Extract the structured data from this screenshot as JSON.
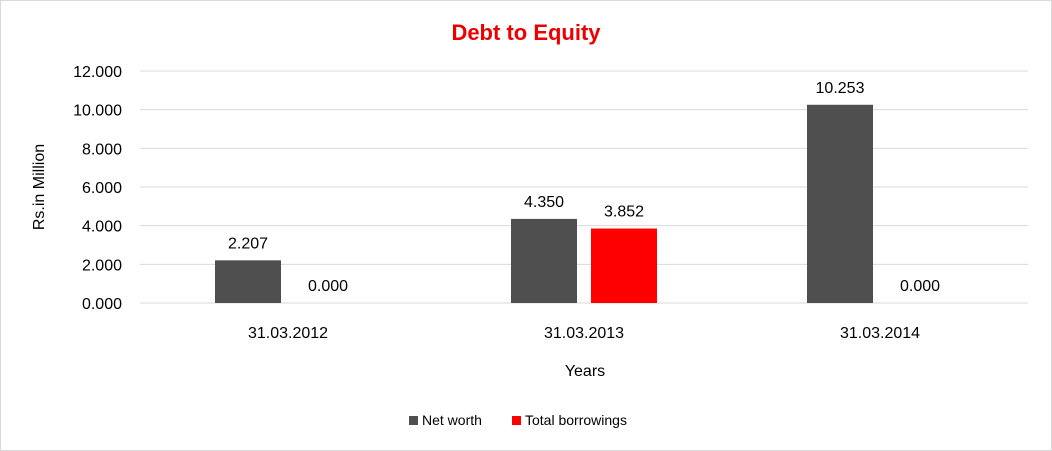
{
  "chart_data": {
    "type": "bar",
    "title": "Debt to Equity",
    "title_color": "#ee0000",
    "xlabel": "Years",
    "ylabel": "Rs.in Million",
    "categories": [
      "31.03.2012",
      "31.03.2013",
      "31.03.2014"
    ],
    "series": [
      {
        "name": "Net worth",
        "color": "#4f4f4f",
        "values": [
          2.207,
          4.35,
          10.253
        ],
        "labels": [
          "2.207",
          "4.350",
          "10.253"
        ]
      },
      {
        "name": "Total borrowings",
        "color": "#ff0000",
        "values": [
          0.0,
          3.852,
          0.0
        ],
        "labels": [
          "0.000",
          "3.852",
          "0.000"
        ]
      }
    ],
    "ylim": [
      0,
      12
    ],
    "yticks": [
      0,
      2,
      4,
      6,
      8,
      10,
      12
    ],
    "ytick_labels": [
      "0.000",
      "2.000",
      "4.000",
      "6.000",
      "8.000",
      "10.000",
      "12.000"
    ],
    "grid": true,
    "legend_position": "bottom"
  }
}
